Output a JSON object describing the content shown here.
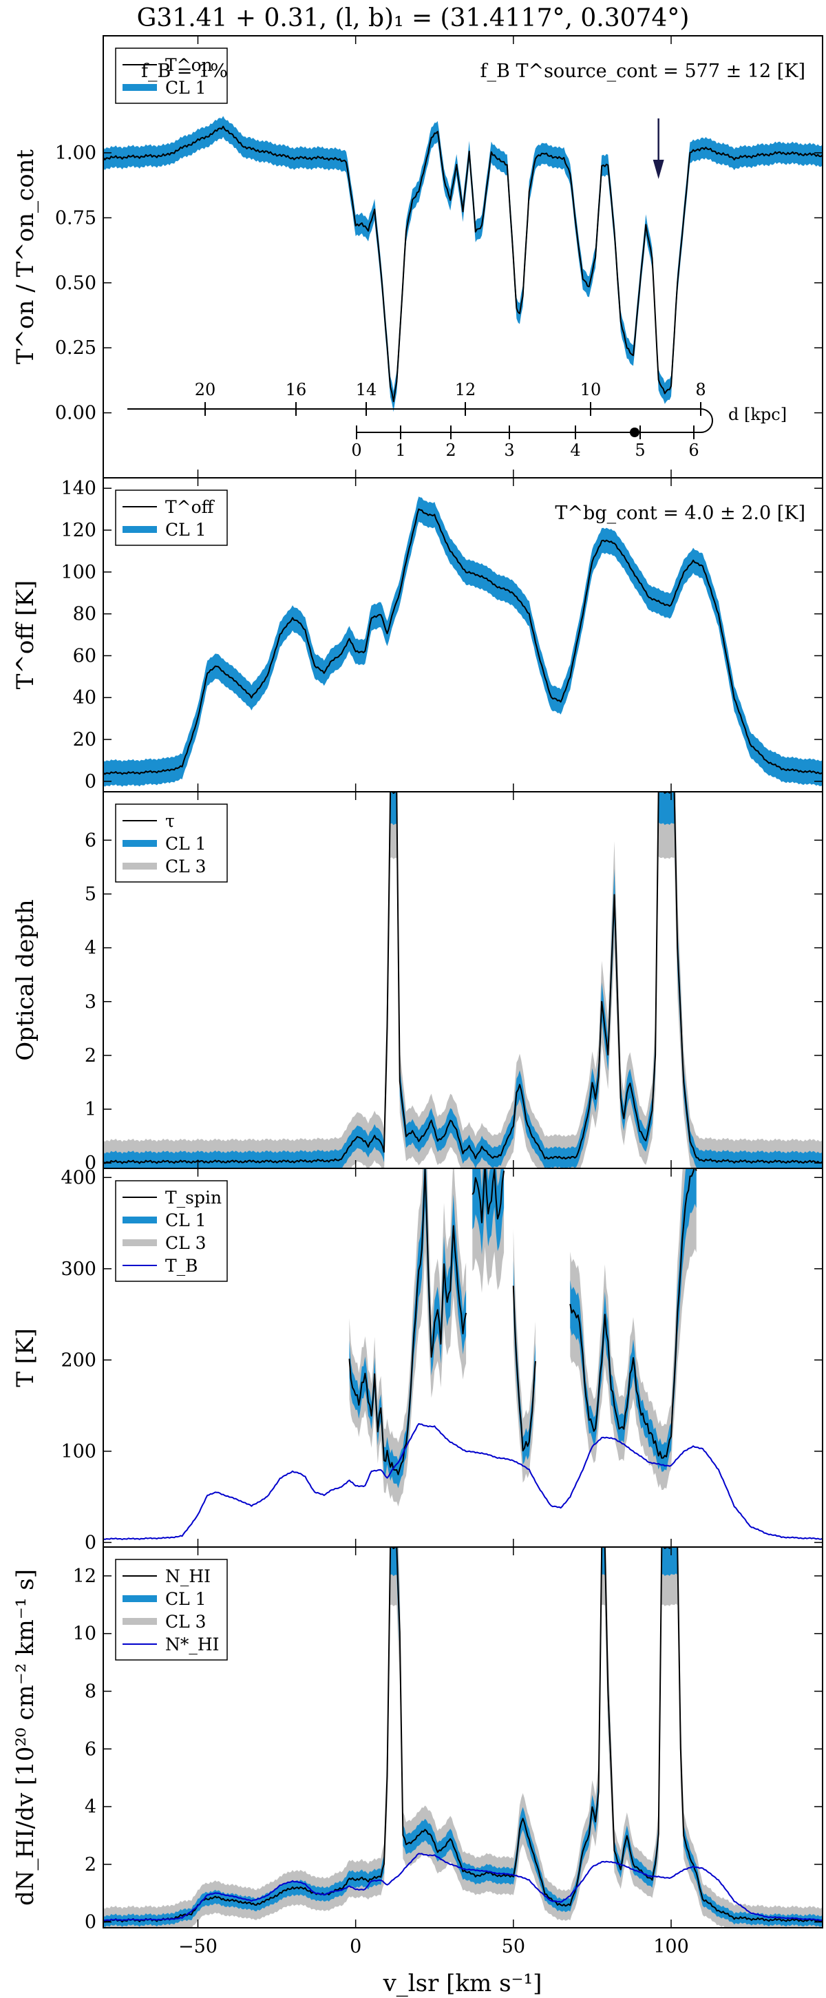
{
  "figure": {
    "title": "G31.41 + 0.31, (l, b)₁ = (31.4117°, 0.3074°)",
    "xlabel": "v_lsr [km s⁻¹]",
    "xlim": [
      -80,
      148
    ],
    "xticks": [
      -50,
      0,
      50,
      100
    ]
  },
  "colors": {
    "line": "#000000",
    "cl1": "#1a8fd0",
    "cl3": "#c0c0c0",
    "tb": "#0000cc"
  },
  "chart_data": [
    {
      "type": "line",
      "panel": "Ton ratio",
      "ylabel": "T^on / T^on_cont",
      "ylim": [
        -0.25,
        1.45
      ],
      "yticks": [
        "0.00",
        "0.25",
        "0.50",
        "0.75",
        "1.00"
      ],
      "annotations": {
        "left": "f_B = 1%",
        "right": "f_B T^source_cont = 577 ± 12 [K]"
      },
      "arrow_at_v": 96,
      "legend": [
        "T^on",
        "CL 1"
      ],
      "x": [
        -80,
        -60,
        -46,
        -42,
        -35,
        -20,
        -10,
        -3,
        0,
        2,
        4,
        6,
        8,
        10,
        11,
        12,
        13,
        14,
        16,
        18,
        20,
        22,
        24,
        26,
        28,
        30,
        32,
        34,
        36,
        38,
        40,
        43,
        45,
        48,
        50,
        51,
        52,
        53,
        55,
        57,
        60,
        63,
        66,
        68,
        70,
        72,
        74,
        76,
        78,
        80,
        82,
        84,
        86,
        88,
        90,
        92,
        94,
        96,
        98,
        100,
        102,
        106,
        110,
        120,
        135,
        148
      ],
      "values": [
        0.98,
        0.99,
        1.07,
        1.1,
        1.02,
        0.98,
        0.98,
        0.97,
        0.72,
        0.73,
        0.7,
        0.78,
        0.55,
        0.25,
        0.1,
        0.05,
        0.12,
        0.3,
        0.7,
        0.82,
        0.85,
        0.95,
        1.06,
        1.08,
        0.9,
        0.82,
        0.95,
        0.78,
        1.0,
        0.7,
        0.72,
        1.0,
        0.98,
        0.95,
        0.6,
        0.4,
        0.38,
        0.45,
        0.85,
        0.98,
        1.0,
        0.98,
        0.98,
        0.92,
        0.7,
        0.52,
        0.48,
        0.6,
        0.95,
        0.95,
        0.7,
        0.35,
        0.25,
        0.22,
        0.48,
        0.72,
        0.6,
        0.12,
        0.08,
        0.1,
        0.5,
        1.0,
        1.02,
        0.98,
        1.0,
        0.99
      ],
      "band_halfwidth": 0.04
    },
    {
      "type": "line",
      "panel": "Toff",
      "ylabel": "T^off [K]",
      "ylim": [
        -5,
        145
      ],
      "yticks": [
        0,
        20,
        40,
        60,
        80,
        100,
        120,
        140
      ],
      "annotations": {
        "right": "T^bg_cont = 4.0 ± 2.0 [K]"
      },
      "legend": [
        "T^off",
        "CL 1"
      ],
      "x": [
        -80,
        -70,
        -60,
        -55,
        -50,
        -47,
        -44,
        -40,
        -36,
        -33,
        -28,
        -24,
        -20,
        -18,
        -16,
        -13,
        -10,
        -8,
        -5,
        -2,
        0,
        3,
        5,
        8,
        10,
        12,
        14,
        16,
        18,
        20,
        22,
        25,
        27,
        30,
        35,
        40,
        45,
        50,
        55,
        58,
        62,
        65,
        68,
        72,
        75,
        78,
        82,
        86,
        90,
        93,
        97,
        100,
        104,
        107,
        110,
        115,
        120,
        125,
        130,
        135,
        140,
        148
      ],
      "values": [
        4,
        4,
        5,
        7,
        30,
        52,
        55,
        50,
        45,
        40,
        50,
        70,
        78,
        76,
        72,
        55,
        52,
        57,
        60,
        68,
        62,
        62,
        78,
        80,
        70,
        82,
        90,
        105,
        118,
        130,
        128,
        127,
        120,
        110,
        100,
        98,
        93,
        90,
        80,
        60,
        40,
        38,
        50,
        80,
        105,
        115,
        114,
        105,
        95,
        88,
        85,
        84,
        100,
        105,
        103,
        80,
        40,
        18,
        10,
        6,
        5,
        4
      ],
      "band_halfwidth": 6
    },
    {
      "type": "line",
      "panel": "tau",
      "ylabel": "Optical depth",
      "ylim": [
        -0.1,
        6.9
      ],
      "yticks": [
        0,
        1,
        2,
        3,
        4,
        5,
        6
      ],
      "legend": [
        "τ",
        "CL 1",
        "CL 3"
      ],
      "x": [
        -80,
        -20,
        -5,
        -2,
        0,
        1,
        3,
        4,
        6,
        8,
        9,
        10,
        11,
        12,
        13,
        14,
        16,
        18,
        20,
        22,
        24,
        26,
        28,
        30,
        32,
        34,
        36,
        38,
        40,
        43,
        46,
        50,
        51,
        52,
        53,
        54,
        56,
        60,
        70,
        72,
        74,
        75,
        76,
        77,
        78,
        80,
        82,
        84,
        85,
        86,
        87,
        88,
        90,
        92,
        94,
        95,
        96,
        97,
        98,
        99,
        100,
        101,
        102,
        104,
        106,
        108,
        110,
        120,
        148
      ],
      "values": [
        0.02,
        0.03,
        0.05,
        0.3,
        0.45,
        0.5,
        0.4,
        0.3,
        0.5,
        0.4,
        0.2,
        2.5,
        6.9,
        6.9,
        6.9,
        1.5,
        0.5,
        0.6,
        0.4,
        0.55,
        0.8,
        0.4,
        0.5,
        0.8,
        0.6,
        0.2,
        0.3,
        0.1,
        0.3,
        0.1,
        0.15,
        0.7,
        1.3,
        1.45,
        1.2,
        0.8,
        0.5,
        0.1,
        0.1,
        0.5,
        1.0,
        1.5,
        1.2,
        1.6,
        3.0,
        2.0,
        5.0,
        1.2,
        0.8,
        1.3,
        1.5,
        1.2,
        0.6,
        0.4,
        1.0,
        2.0,
        6.9,
        6.9,
        6.9,
        6.9,
        6.9,
        6.9,
        4.0,
        1.5,
        0.4,
        0.1,
        0.05,
        0.03,
        0.02
      ],
      "band_halfwidth": 0.18,
      "cl3_halfwidth": 0.4
    },
    {
      "type": "line",
      "panel": "Tspin",
      "ylabel": "T [K]",
      "ylim": [
        -5,
        410
      ],
      "yticks": [
        0,
        100,
        200,
        300,
        400
      ],
      "legend": [
        "T_spin",
        "CL 1",
        "CL 3",
        "T_B"
      ],
      "spin_segments": [
        {
          "x": [
            -2,
            -1,
            0,
            1,
            2,
            3,
            4,
            5,
            6,
            7,
            8,
            9,
            10,
            11,
            12,
            13,
            14,
            15,
            16,
            17,
            18,
            19,
            20,
            21,
            22,
            23,
            24,
            25,
            26,
            27,
            28,
            29,
            30,
            31,
            32,
            33,
            34,
            35
          ],
          "values": [
            200,
            170,
            165,
            150,
            170,
            185,
            160,
            140,
            180,
            120,
            150,
            90,
            100,
            85,
            80,
            75,
            80,
            95,
            110,
            140,
            200,
            250,
            300,
            320,
            410,
            300,
            200,
            240,
            260,
            220,
            300,
            260,
            280,
            350,
            300,
            260,
            230,
            250
          ]
        },
        {
          "x": [
            37,
            38,
            39,
            40,
            41,
            42,
            43,
            44,
            45,
            46,
            47
          ],
          "values": [
            380,
            400,
            390,
            350,
            410,
            360,
            380,
            410,
            350,
            370,
            410
          ]
        },
        {
          "x": [
            50,
            51,
            52,
            53,
            54,
            55,
            56,
            57
          ],
          "values": [
            280,
            200,
            150,
            100,
            105,
            110,
            150,
            200
          ]
        },
        {
          "x": [
            68,
            70,
            71,
            72,
            73,
            74,
            75,
            76,
            77,
            78,
            79,
            80,
            81,
            82,
            83,
            84,
            85,
            86,
            87,
            88,
            89,
            90,
            91,
            92,
            93,
            94,
            95,
            96,
            97,
            98,
            99,
            100,
            101,
            102,
            103,
            104,
            105,
            106,
            107,
            108
          ],
          "values": [
            260,
            250,
            240,
            200,
            160,
            140,
            130,
            120,
            160,
            200,
            250,
            220,
            170,
            150,
            130,
            125,
            130,
            150,
            180,
            200,
            170,
            150,
            140,
            130,
            120,
            115,
            110,
            100,
            95,
            90,
            100,
            120,
            180,
            250,
            300,
            350,
            380,
            400,
            410,
            410
          ]
        }
      ],
      "tb_x": [
        -80,
        -70,
        -60,
        -55,
        -50,
        -47,
        -44,
        -40,
        -36,
        -33,
        -28,
        -24,
        -20,
        -18,
        -16,
        -13,
        -10,
        -8,
        -5,
        -2,
        0,
        3,
        5,
        8,
        10,
        12,
        14,
        16,
        18,
        20,
        22,
        25,
        27,
        30,
        35,
        40,
        45,
        50,
        55,
        58,
        62,
        65,
        68,
        72,
        75,
        78,
        82,
        86,
        90,
        93,
        97,
        100,
        104,
        107,
        110,
        115,
        120,
        125,
        130,
        135,
        140,
        148
      ],
      "tb_values": [
        4,
        4,
        5,
        7,
        30,
        52,
        55,
        50,
        45,
        40,
        50,
        70,
        78,
        76,
        72,
        55,
        52,
        57,
        60,
        68,
        62,
        62,
        78,
        80,
        70,
        82,
        90,
        105,
        118,
        130,
        128,
        127,
        120,
        110,
        100,
        98,
        93,
        90,
        80,
        60,
        40,
        38,
        50,
        80,
        105,
        115,
        114,
        105,
        95,
        88,
        85,
        84,
        100,
        105,
        103,
        80,
        40,
        18,
        10,
        6,
        5,
        4
      ],
      "band_halfwidth": 15,
      "cl3_halfwidth": 35
    },
    {
      "type": "line",
      "panel": "column density",
      "ylabel": "dN_HI/dv [10²⁰ cm⁻² km⁻¹ s]",
      "ylim": [
        -0.2,
        13
      ],
      "yticks": [
        0,
        2,
        4,
        6,
        8,
        10,
        12
      ],
      "legend": [
        "N_HI",
        "CL 1",
        "CL 3",
        "N*_HI"
      ],
      "x": [
        -80,
        -60,
        -52,
        -48,
        -44,
        -40,
        -36,
        -32,
        -28,
        -24,
        -20,
        -16,
        -12,
        -8,
        -4,
        -2,
        0,
        2,
        4,
        6,
        8,
        9,
        10,
        11,
        12,
        13,
        14,
        15,
        16,
        18,
        20,
        22,
        24,
        26,
        28,
        30,
        34,
        38,
        42,
        46,
        50,
        51,
        52,
        53,
        54,
        56,
        60,
        64,
        68,
        70,
        72,
        74,
        75,
        76,
        77,
        78,
        79,
        80,
        82,
        84,
        85,
        86,
        87,
        88,
        90,
        92,
        94,
        95,
        96,
        97,
        98,
        99,
        100,
        101,
        102,
        103,
        104,
        106,
        108,
        110,
        115,
        120,
        130,
        148
      ],
      "values": [
        0.05,
        0.08,
        0.3,
        0.8,
        0.85,
        0.75,
        0.7,
        0.6,
        0.75,
        1.0,
        1.2,
        1.15,
        0.95,
        1.0,
        1.2,
        1.5,
        1.45,
        1.55,
        1.4,
        1.55,
        1.6,
        2.0,
        5.0,
        13,
        13,
        13,
        10,
        3.0,
        2.7,
        2.8,
        3.0,
        3.2,
        3.0,
        2.4,
        2.6,
        2.9,
        1.8,
        1.6,
        1.7,
        1.6,
        1.6,
        2.2,
        3.2,
        3.6,
        3.2,
        2.5,
        1.0,
        0.6,
        0.6,
        1.2,
        2.5,
        3.0,
        4.0,
        3.5,
        4.5,
        13,
        13,
        8.0,
        2.5,
        1.8,
        2.5,
        3.0,
        2.5,
        2.0,
        1.8,
        1.6,
        1.5,
        2.0,
        3.0,
        13,
        13,
        13,
        13,
        13,
        13,
        6.0,
        3.0,
        2.2,
        1.7,
        0.8,
        0.4,
        0.15,
        0.08,
        0.05
      ],
      "nstar_x": [
        -80,
        -60,
        -55,
        -50,
        -47,
        -44,
        -40,
        -36,
        -33,
        -28,
        -24,
        -20,
        -18,
        -16,
        -13,
        -10,
        -8,
        -5,
        -2,
        0,
        3,
        5,
        8,
        10,
        12,
        14,
        16,
        18,
        20,
        22,
        25,
        27,
        30,
        35,
        40,
        45,
        50,
        55,
        58,
        62,
        65,
        68,
        72,
        75,
        78,
        82,
        86,
        90,
        93,
        97,
        100,
        104,
        107,
        110,
        115,
        120,
        125,
        130,
        148
      ],
      "nstar_values": [
        0.07,
        0.09,
        0.14,
        0.55,
        0.95,
        1.0,
        0.91,
        0.82,
        0.73,
        0.91,
        1.27,
        1.42,
        1.38,
        1.31,
        1.0,
        0.95,
        1.04,
        1.09,
        1.24,
        1.13,
        1.13,
        1.42,
        1.46,
        1.27,
        1.49,
        1.64,
        1.91,
        2.15,
        2.37,
        2.33,
        2.31,
        2.18,
        2.0,
        1.82,
        1.78,
        1.69,
        1.64,
        1.46,
        1.09,
        0.73,
        0.69,
        0.91,
        1.46,
        1.91,
        2.09,
        2.07,
        1.91,
        1.73,
        1.6,
        1.55,
        1.53,
        1.82,
        1.91,
        1.87,
        1.46,
        0.73,
        0.33,
        0.18,
        0.07
      ],
      "band_halfwidth": 0.18,
      "cl3_halfwidth": 0.45
    }
  ],
  "distance_axis": {
    "unit_label": "d [kpc]",
    "far_ticks": [
      "20",
      "16",
      "14",
      "12",
      "10",
      "8"
    ],
    "near_ticks": [
      "0",
      "1",
      "2",
      "3",
      "4",
      "5",
      "6"
    ]
  }
}
